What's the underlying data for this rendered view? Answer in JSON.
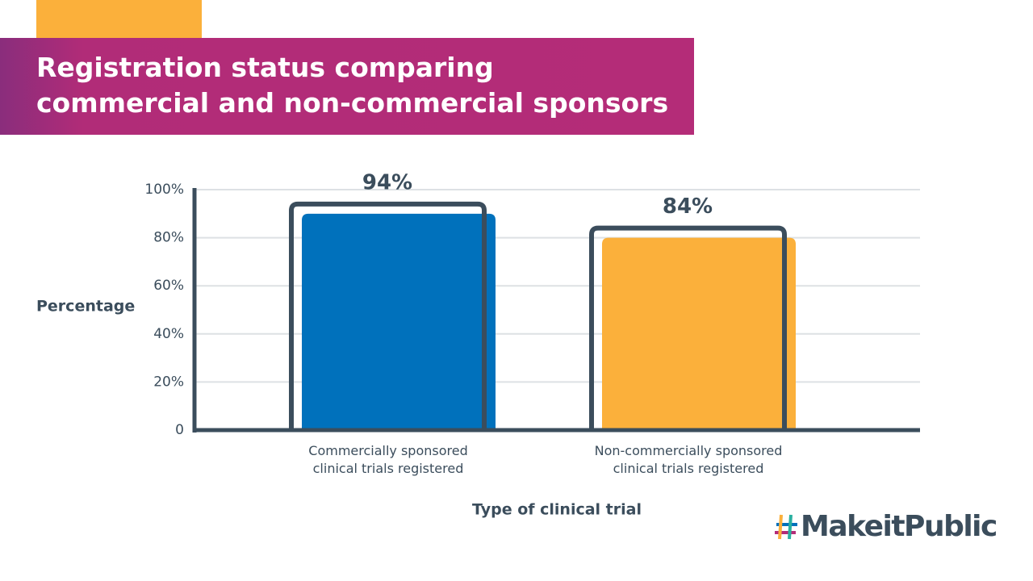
{
  "chart_data": {
    "type": "bar",
    "title": "Registration status comparing commercial and non-commercial sponsors",
    "y_label": "Percentage",
    "x_label": "Type of clinical trial",
    "categories": [
      "Commercially sponsored clinical trials registered",
      "Non-commercially sponsored clinical trials registered"
    ],
    "values": [
      94,
      84
    ],
    "value_labels": [
      "94%",
      "84%"
    ],
    "colors": [
      "#0071bc",
      "#fbb03b"
    ],
    "outline_color": "#3b4d5c",
    "ylim": [
      0,
      100
    ],
    "yticks": [
      0,
      {
        "value": 20,
        "label": "20%"
      },
      {
        "value": 40,
        "label": "40%"
      },
      {
        "value": 60,
        "label": "60%"
      },
      {
        "value": 80,
        "label": "80%"
      },
      {
        "value": 100,
        "label": "100%"
      }
    ],
    "grid": true
  },
  "brand": "MakeitPublic"
}
